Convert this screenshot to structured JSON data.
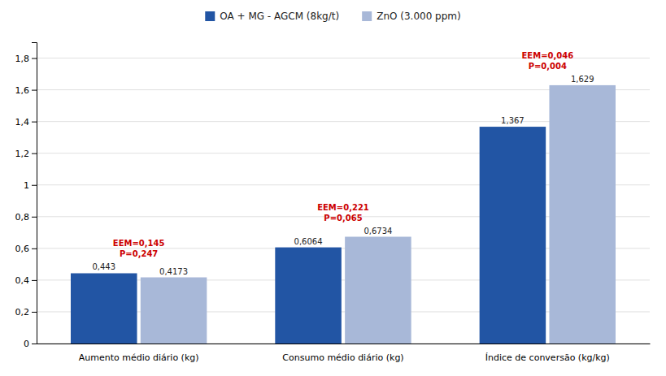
{
  "chart_data": {
    "type": "bar",
    "categories": [
      "Aumento médio diário (kg)",
      "Consumo médio diário (kg)",
      "Índice de conversão (kg/kg)"
    ],
    "series": [
      {
        "name": "OA + MG - AGCM (8kg/t)",
        "color": "#2255A4",
        "values": [
          0.443,
          0.6064,
          1.367
        ],
        "value_labels": [
          "0,443",
          "0,6064",
          "1,367"
        ]
      },
      {
        "name": "ZnO (3.000 ppm)",
        "color": "#A8B8D8",
        "values": [
          0.4173,
          0.6734,
          1.629
        ],
        "value_labels": [
          "0,4173",
          "0,6734",
          "1,629"
        ]
      }
    ],
    "annotations": [
      {
        "text": "EEM=0,145\nP=0,247",
        "color": "#CC0000"
      },
      {
        "text": "EEM=0,221\nP=0,065",
        "color": "#CC0000"
      },
      {
        "text": "EEM=0,046\nP=0,004",
        "color": "#CC0000"
      }
    ],
    "ylim": [
      0,
      1.9
    ],
    "yticks": [
      0,
      {
        "value": 0.2,
        "label": "0,2"
      },
      {
        "value": 0.4,
        "label": "0,4"
      },
      {
        "value": 0.6,
        "label": "0,6"
      },
      {
        "value": 0.8,
        "label": "0,8"
      },
      1,
      {
        "value": 1.2,
        "label": "1,2"
      },
      {
        "value": 1.4,
        "label": "1,4"
      },
      {
        "value": 1.6,
        "label": "1,6"
      },
      {
        "value": 1.8,
        "label": "1,8"
      }
    ],
    "grid": true,
    "legend": "top",
    "data_labels": true
  }
}
